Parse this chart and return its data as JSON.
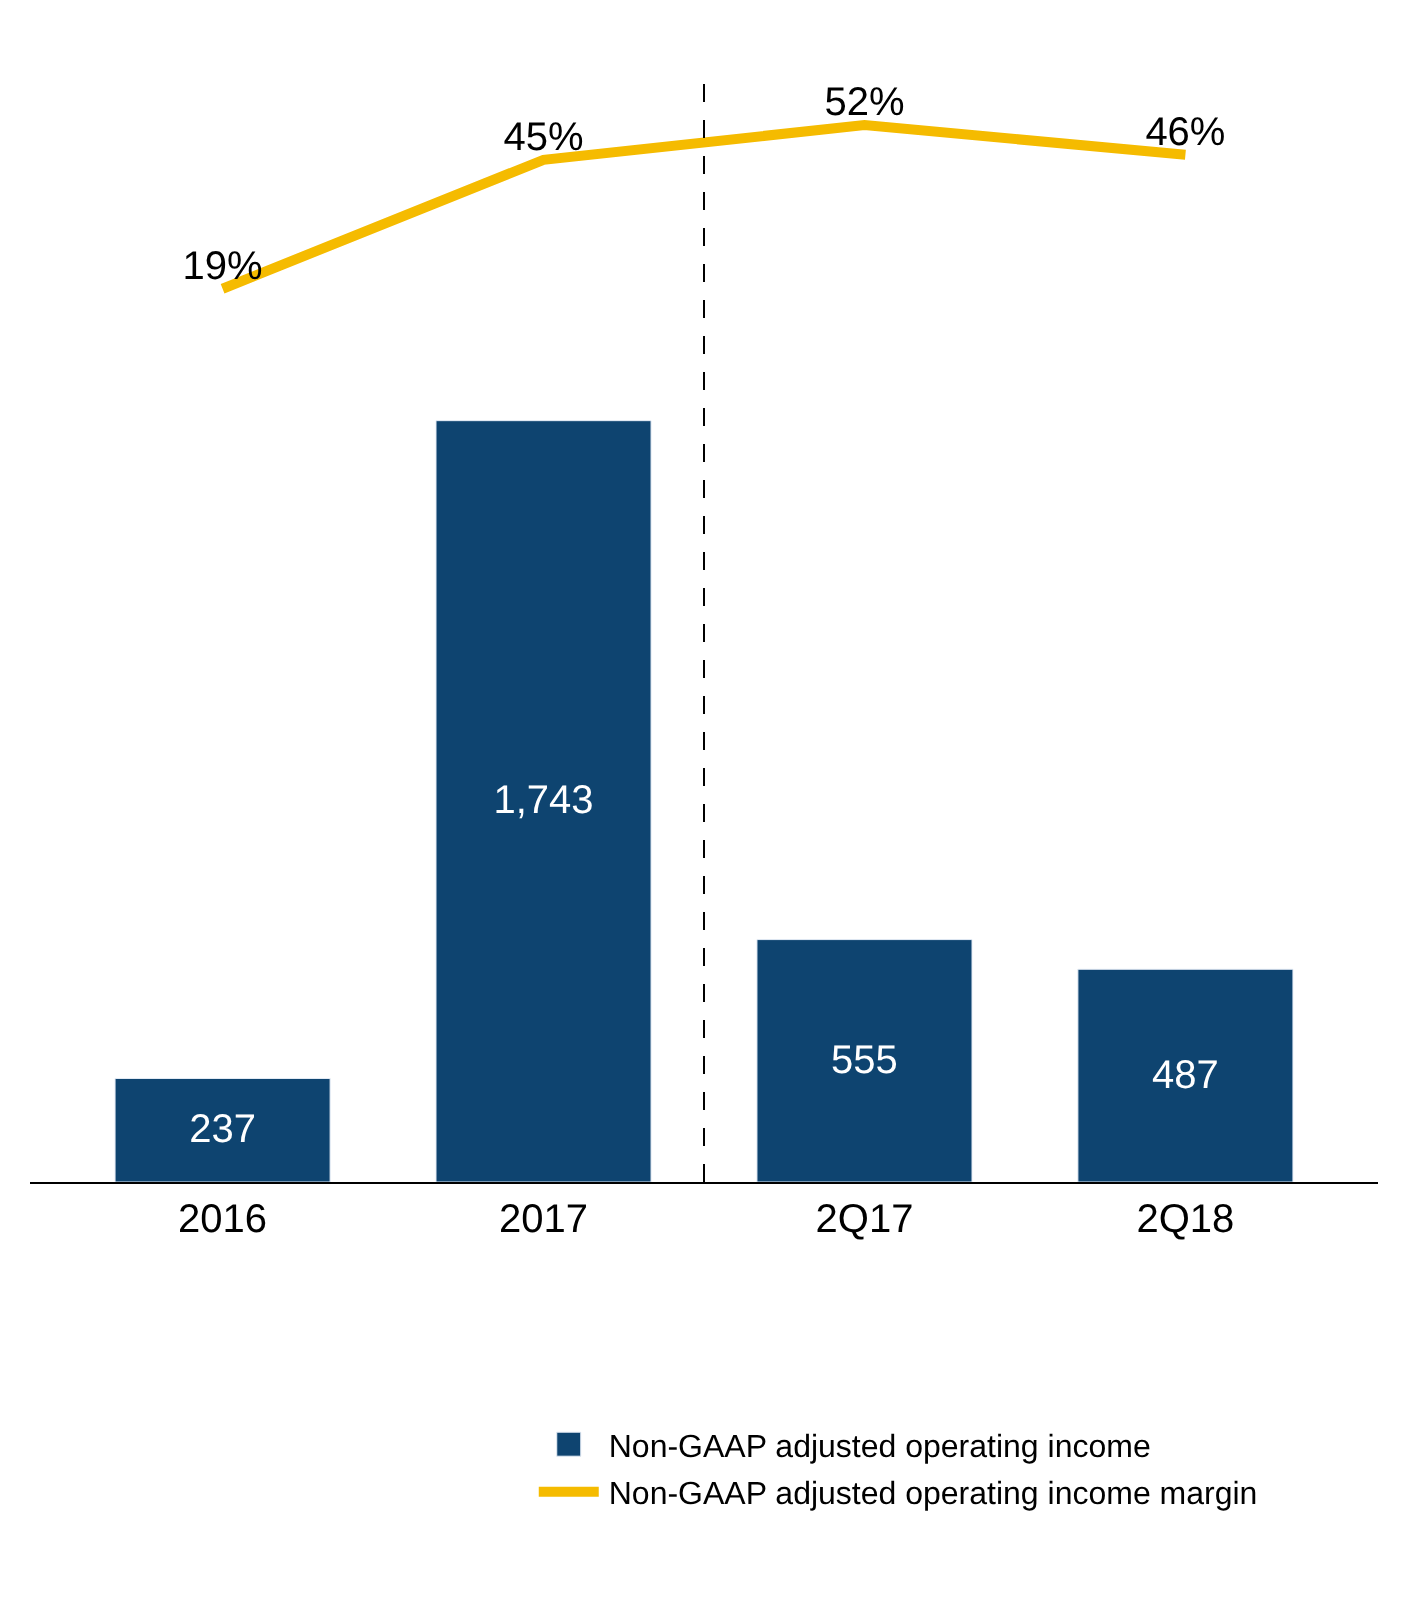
{
  "chart_data": [
    {
      "type": "line",
      "categories": [
        "2016",
        "2017",
        "2Q17",
        "2Q18"
      ],
      "tick_labels": false,
      "marker": "none",
      "line_style": "solid",
      "series": [
        {
          "name": "Non-GAAP adjusted operating income margin",
          "color": "#f5bb00",
          "values": [
            19,
            45,
            52,
            46
          ],
          "value_labels": [
            "19%",
            "45%",
            "52%",
            "46%"
          ]
        }
      ]
    },
    {
      "type": "bar",
      "categories": [
        "2016",
        "2017",
        "2Q17",
        "2Q18"
      ],
      "tick_labels": "x",
      "legend": "bottom",
      "series": [
        {
          "name": "Non-GAAP adjusted operating income",
          "color": "#0e4470",
          "values": [
            237,
            1743,
            555,
            487
          ],
          "value_labels": [
            "237",
            "1,743",
            "555",
            "487"
          ]
        }
      ]
    }
  ]
}
